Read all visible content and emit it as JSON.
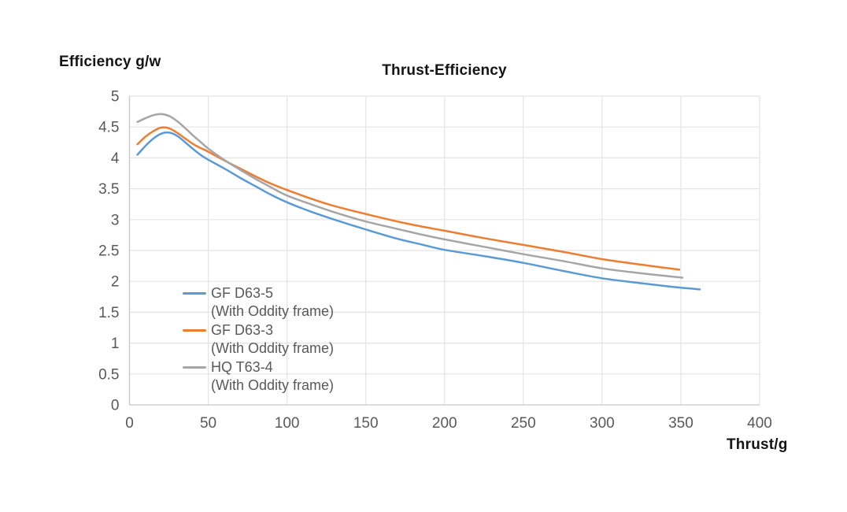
{
  "chart_data": {
    "type": "line",
    "title": "Thrust-Efficiency",
    "y_axis_title": "Efficiency g/w",
    "x_axis_title": "Thrust/g",
    "xlim": [
      0,
      400
    ],
    "ylim": [
      0,
      5
    ],
    "x_ticks": [
      0,
      50,
      100,
      150,
      200,
      250,
      300,
      350,
      400
    ],
    "y_ticks": [
      0,
      0.5,
      1,
      1.5,
      2,
      2.5,
      3,
      3.5,
      4,
      4.5,
      5
    ],
    "grid": true,
    "legend_position": "inside-bottom-left",
    "style": {
      "grid_color": "#e4e4e4",
      "axis_color": "#c6c6c6",
      "tick_color": "#595959",
      "title_color": "#141414",
      "line_width": 2.5
    },
    "series": [
      {
        "name": "GF D63-5",
        "subtitle": "(With Oddity frame)",
        "color": "#5B9BD5",
        "points": [
          [
            5,
            4.05
          ],
          [
            10,
            4.19
          ],
          [
            15,
            4.31
          ],
          [
            20,
            4.39
          ],
          [
            25,
            4.41
          ],
          [
            30,
            4.36
          ],
          [
            35,
            4.26
          ],
          [
            40,
            4.15
          ],
          [
            45,
            4.05
          ],
          [
            50,
            3.97
          ],
          [
            60,
            3.83
          ],
          [
            70,
            3.68
          ],
          [
            80,
            3.54
          ],
          [
            90,
            3.4
          ],
          [
            100,
            3.28
          ],
          [
            115,
            3.13
          ],
          [
            130,
            3.0
          ],
          [
            150,
            2.84
          ],
          [
            170,
            2.69
          ],
          [
            185,
            2.6
          ],
          [
            200,
            2.51
          ],
          [
            225,
            2.41
          ],
          [
            250,
            2.3
          ],
          [
            275,
            2.17
          ],
          [
            300,
            2.05
          ],
          [
            325,
            1.97
          ],
          [
            345,
            1.91
          ],
          [
            362,
            1.87
          ]
        ]
      },
      {
        "name": "GF D63-3",
        "subtitle": "(With Oddity frame)",
        "color": "#ED7D31",
        "points": [
          [
            5,
            4.22
          ],
          [
            10,
            4.34
          ],
          [
            15,
            4.43
          ],
          [
            20,
            4.49
          ],
          [
            25,
            4.48
          ],
          [
            30,
            4.41
          ],
          [
            35,
            4.32
          ],
          [
            40,
            4.23
          ],
          [
            45,
            4.16
          ],
          [
            50,
            4.1
          ],
          [
            60,
            3.96
          ],
          [
            70,
            3.83
          ],
          [
            80,
            3.7
          ],
          [
            90,
            3.58
          ],
          [
            100,
            3.48
          ],
          [
            115,
            3.34
          ],
          [
            130,
            3.22
          ],
          [
            150,
            3.09
          ],
          [
            170,
            2.97
          ],
          [
            185,
            2.89
          ],
          [
            200,
            2.82
          ],
          [
            225,
            2.7
          ],
          [
            250,
            2.59
          ],
          [
            275,
            2.48
          ],
          [
            300,
            2.36
          ],
          [
            325,
            2.27
          ],
          [
            349,
            2.19
          ]
        ]
      },
      {
        "name": "HQ T63-4",
        "subtitle": "(With Oddity frame)",
        "color": "#A6A6A6",
        "points": [
          [
            5,
            4.58
          ],
          [
            10,
            4.64
          ],
          [
            15,
            4.69
          ],
          [
            20,
            4.71
          ],
          [
            25,
            4.68
          ],
          [
            30,
            4.6
          ],
          [
            35,
            4.49
          ],
          [
            40,
            4.37
          ],
          [
            45,
            4.26
          ],
          [
            50,
            4.15
          ],
          [
            60,
            3.97
          ],
          [
            70,
            3.81
          ],
          [
            80,
            3.66
          ],
          [
            90,
            3.52
          ],
          [
            100,
            3.39
          ],
          [
            115,
            3.25
          ],
          [
            130,
            3.12
          ],
          [
            150,
            2.97
          ],
          [
            170,
            2.85
          ],
          [
            185,
            2.76
          ],
          [
            200,
            2.68
          ],
          [
            225,
            2.56
          ],
          [
            250,
            2.44
          ],
          [
            275,
            2.33
          ],
          [
            300,
            2.21
          ],
          [
            325,
            2.13
          ],
          [
            351,
            2.06
          ]
        ]
      }
    ]
  }
}
